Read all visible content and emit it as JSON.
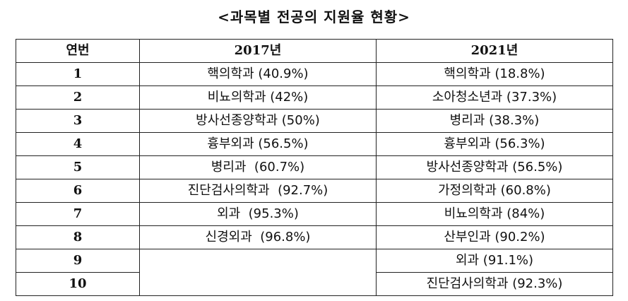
{
  "title": "<과목별 전공의 지원율 현황>",
  "headers": {
    "rank": "연번",
    "y2017": "2017년",
    "y2021": "2021년"
  },
  "rows": [
    {
      "rank": "1",
      "y2017": "핵의학과 (40.9%)",
      "y2021": "핵의학과 (18.8%)"
    },
    {
      "rank": "2",
      "y2017": "비뇨의학과 (42%)",
      "y2021": "소아청소년과 (37.3%)"
    },
    {
      "rank": "3",
      "y2017": "방사선종양학과 (50%)",
      "y2021": "병리과 (38.3%)"
    },
    {
      "rank": "4",
      "y2017": "흉부외과 (56.5%)",
      "y2021": "흉부외과 (56.3%)"
    },
    {
      "rank": "5",
      "y2017": "병리과  (60.7%)",
      "y2021": "방사선종양학과 (56.5%)"
    },
    {
      "rank": "6",
      "y2017": "진단검사의학과  (92.7%)",
      "y2021": "가정의학과 (60.8%)"
    },
    {
      "rank": "7",
      "y2017": "외과  (95.3%)",
      "y2021": "비뇨의학과 (84%)"
    },
    {
      "rank": "8",
      "y2017": "신경외과  (96.8%)",
      "y2021": "산부인과 (90.2%)"
    },
    {
      "rank": "9",
      "y2017": "",
      "y2021": "외과 (91.1%)"
    },
    {
      "rank": "10",
      "y2017": "",
      "y2021": "진단검사의학과 (92.3%)"
    }
  ]
}
